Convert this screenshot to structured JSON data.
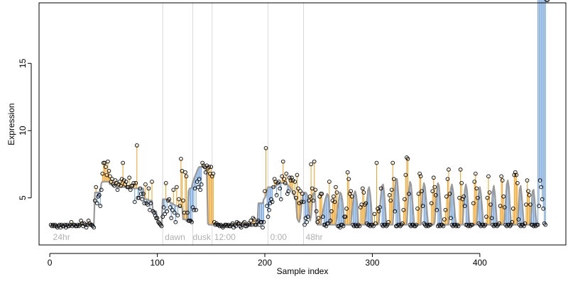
{
  "chart_data": {
    "type": "scatter",
    "xlabel": "Sample index",
    "ylabel": "Expression",
    "xlim": [
      -10,
      480
    ],
    "ylim": [
      1.5,
      19.5
    ],
    "xticks": [
      0,
      100,
      200,
      300,
      400
    ],
    "yticks": [
      5,
      10,
      15
    ],
    "grid": false,
    "colors": {
      "fit": "#9a9a9a",
      "above": "#f0a020",
      "below": "#6fa0d8",
      "points": "#000000",
      "vlines": "#d8d8d8",
      "annotations": "#b0b0b0"
    },
    "vlines": [
      105,
      133,
      151,
      203,
      236
    ],
    "annotations": [
      {
        "label": "24hr",
        "x": 3
      },
      {
        "label": "dawn",
        "x": 107
      },
      {
        "label": "dusk",
        "x": 133
      },
      {
        "label": "12:00",
        "x": 153
      },
      {
        "label": "0:00",
        "x": 205
      },
      {
        "label": "48hr",
        "x": 238
      }
    ],
    "x": [
      1,
      2,
      3,
      4,
      5,
      6,
      7,
      8,
      9,
      10,
      11,
      12,
      13,
      14,
      15,
      16,
      17,
      18,
      19,
      20,
      21,
      22,
      23,
      24,
      25,
      26,
      27,
      28,
      29,
      30,
      31,
      32,
      33,
      34,
      35,
      36,
      37,
      38,
      39,
      40,
      41,
      42,
      43,
      44,
      45,
      46,
      47,
      48,
      49,
      50,
      51,
      52,
      53,
      54,
      55,
      56,
      57,
      58,
      59,
      60,
      61,
      62,
      63,
      64,
      65,
      66,
      67,
      68,
      69,
      70,
      71,
      72,
      73,
      74,
      75,
      76,
      77,
      78,
      79,
      80,
      81,
      82,
      83,
      84,
      85,
      86,
      87,
      88,
      89,
      90,
      91,
      92,
      93,
      94,
      95,
      96,
      97,
      98,
      99,
      100,
      101,
      102,
      103,
      104,
      105,
      106,
      107,
      108,
      109,
      110,
      111,
      112,
      113,
      114,
      115,
      116,
      117,
      118,
      119,
      120,
      121,
      122,
      123,
      124,
      125,
      126,
      127,
      128,
      129,
      130,
      131,
      132,
      133,
      134,
      135,
      136,
      137,
      138,
      139,
      140,
      141,
      142,
      143,
      144,
      145,
      146,
      147,
      148,
      149,
      150,
      151,
      152,
      153,
      154,
      155,
      156,
      157,
      158,
      159,
      160,
      161,
      162,
      163,
      164,
      165,
      166,
      167,
      168,
      169,
      170,
      171,
      172,
      173,
      174,
      175,
      176,
      177,
      178,
      179,
      180,
      181,
      182,
      183,
      184,
      185,
      186,
      187,
      188,
      189,
      190,
      191,
      192,
      193,
      194,
      195,
      196,
      197,
      198,
      199,
      200,
      201,
      202,
      203,
      204,
      205,
      206,
      207,
      208,
      209,
      210,
      211,
      212,
      213,
      214,
      215,
      216,
      217,
      218,
      219,
      220,
      221,
      222,
      223,
      224,
      225,
      226,
      227,
      228,
      229,
      230,
      231,
      232,
      233,
      234,
      235,
      236,
      237,
      238,
      239,
      240,
      241,
      242,
      243,
      244,
      245,
      246,
      247,
      248,
      249,
      250,
      251,
      252,
      253,
      254,
      255,
      256,
      257,
      258,
      259,
      260,
      261,
      262,
      263,
      264,
      265,
      266,
      267,
      268,
      269,
      270,
      271,
      272,
      273,
      274,
      275,
      276,
      277,
      278,
      279,
      280,
      281,
      282,
      283,
      284,
      285,
      286,
      287,
      288,
      289,
      290,
      291,
      292,
      293,
      294,
      295,
      296,
      297,
      298,
      299,
      300,
      301,
      302,
      303,
      304,
      305,
      306,
      307,
      308,
      309,
      310,
      311,
      312,
      313,
      314,
      315,
      316,
      317,
      318,
      319,
      320,
      321,
      322,
      323,
      324,
      325,
      326,
      327,
      328,
      329,
      330,
      331,
      332,
      333,
      334,
      335,
      336,
      337,
      338,
      339,
      340,
      341,
      342,
      343,
      344,
      345,
      346,
      347,
      348,
      349,
      350,
      351,
      352,
      353,
      354,
      355,
      356,
      357,
      358,
      359,
      360,
      361,
      362,
      363,
      364,
      365,
      366,
      367,
      368,
      369,
      370,
      371,
      372,
      373,
      374,
      375,
      376,
      377,
      378,
      379,
      380,
      381,
      382,
      383,
      384,
      385,
      386,
      387,
      388,
      389,
      390,
      391,
      392,
      393,
      394,
      395,
      396,
      397,
      398,
      399,
      400,
      401,
      402,
      403,
      404,
      405,
      406,
      407,
      408,
      409,
      410,
      411,
      412,
      413,
      414,
      415,
      416,
      417,
      418,
      419,
      420,
      421,
      422,
      423,
      424,
      425,
      426,
      427,
      428,
      429,
      430,
      431,
      432,
      433,
      434,
      435,
      436,
      437,
      438,
      439,
      440,
      441,
      442,
      443,
      444,
      445,
      446,
      447,
      448,
      449,
      450,
      451,
      452,
      453,
      454,
      455,
      456,
      457,
      458,
      459,
      460,
      461,
      462,
      463
    ],
    "observed": [
      3.0,
      2.9,
      3.0,
      2.9,
      3.0,
      2.9,
      2.8,
      2.9,
      3.0,
      2.8,
      3.0,
      2.9,
      2.9,
      3.0,
      2.8,
      3.0,
      2.9,
      2.9,
      3.0,
      3.2,
      2.9,
      3.0,
      3.0,
      2.9,
      2.9,
      3.0,
      2.9,
      3.0,
      3.3,
      3.1,
      2.9,
      3.1,
      3.0,
      2.8,
      3.0,
      3.3,
      3.1,
      3.0,
      3.0,
      2.9,
      2.8,
      4.8,
      5.8,
      4.6,
      5.1,
      5.2,
      4.4,
      5.6,
      6.8,
      7.6,
      7.6,
      7.3,
      6.7,
      7.7,
      7.0,
      6.6,
      6.2,
      6.4,
      6.0,
      5.9,
      6.3,
      6.1,
      5.6,
      6.0,
      6.2,
      5.9,
      6.4,
      7.6,
      6.3,
      6.0,
      6.2,
      5.8,
      5.8,
      6.5,
      5.6,
      5.9,
      5.9,
      6.1,
      4.7,
      6.1,
      8.9,
      5.0,
      5.0,
      5.7,
      5.3,
      4.9,
      5.3,
      4.6,
      6.0,
      4.6,
      4.5,
      5.7,
      4.1,
      4.6,
      6.2,
      4.0,
      3.9,
      3.7,
      3.5,
      3.5,
      3.2,
      3.1,
      3.0,
      2.9,
      3.6,
      4.3,
      3.8,
      6.1,
      4.0,
      4.8,
      4.9,
      4.3,
      3.5,
      4.1,
      5.6,
      3.9,
      3.2,
      5.8,
      3.7,
      4.9,
      4.4,
      7.9,
      7.0,
      4.8,
      3.9,
      6.9,
      6.6,
      3.9,
      3.3,
      3.3,
      3.3,
      3.2,
      4.3,
      4.1,
      5.7,
      4.1,
      6.2,
      5.8,
      6.4,
      5.6,
      6.0,
      7.6,
      7.4,
      7.3,
      6.9,
      7.4,
      7.2,
      7.3,
      6.8,
      7.3,
      6.6,
      6.8,
      3.2,
      3.0,
      3.1,
      3.0,
      3.0,
      2.9,
      3.0,
      2.9,
      2.8,
      2.9,
      3.0,
      3.0,
      2.9,
      3.0,
      2.9,
      2.9,
      3.0,
      3.1,
      2.8,
      3.0,
      2.9,
      3.2,
      3.1,
      3.1,
      2.9,
      2.8,
      3.0,
      3.1,
      3.2,
      2.9,
      2.9,
      3.0,
      3.1,
      3.0,
      3.3,
      3.0,
      3.5,
      3.4,
      3.0,
      3.0,
      3.2,
      3.3,
      3.0,
      3.2,
      3.2,
      2.8,
      3.2,
      5.5,
      8.7,
      4.4,
      3.6,
      4.1,
      4.6,
      4.9,
      4.7,
      5.8,
      6.4,
      6.2,
      5.2,
      6.1,
      6.2,
      5.7,
      4.9,
      6.6,
      7.7,
      6.4,
      6.1,
      6.8,
      5.3,
      5.5,
      6.5,
      6.3,
      6.5,
      6.3,
      5.4,
      6.2,
      5.0,
      6.7,
      5.7,
      4.6,
      5.5,
      4.7,
      5.3,
      4.7,
      3.0,
      3.5,
      3.2,
      3.6,
      4.8,
      5.1,
      7.5,
      5.7,
      4.8,
      7.7,
      5.6,
      4.0,
      3.2,
      3.5,
      5.1,
      5.3,
      5.3,
      3.6,
      3.0,
      3.0,
      2.9,
      3.1,
      3.1,
      6.2,
      3.3,
      4.0,
      4.8,
      5.1,
      4.7,
      5.8,
      5.4,
      2.9,
      2.9,
      2.8,
      3.0,
      3.0,
      2.9,
      3.6,
      3.6,
      4.2,
      6.9,
      6.4,
      5.3,
      5.5,
      5.1,
      3.0,
      2.9,
      3.0,
      2.9,
      2.9,
      3.0,
      2.9,
      4.3,
      4.5,
      5.7,
      5.4,
      4.5,
      4.6,
      3.1,
      3.0,
      3.0,
      2.9,
      3.0,
      3.0,
      2.9,
      3.8,
      3.1,
      7.6,
      4.2,
      4.0,
      4.3,
      5.7,
      3.0,
      2.9,
      3.0,
      3.0,
      2.9,
      3.0,
      3.2,
      5.2,
      4.8,
      5.6,
      7.6,
      6.4,
      4.0,
      2.9,
      2.9,
      3.0,
      3.0,
      2.9,
      3.0,
      3.1,
      4.1,
      4.9,
      6.7,
      8.0,
      7.9,
      5.3,
      3.0,
      2.9,
      3.0,
      3.0,
      2.9,
      2.9,
      3.0,
      4.2,
      5.3,
      6.8,
      6.6,
      5.5,
      4.4,
      3.1,
      3.0,
      2.9,
      3.0,
      2.9,
      3.0,
      3.0,
      4.6,
      5.5,
      6.5,
      5.8,
      5.2,
      4.1,
      2.9,
      3.0,
      2.9,
      3.0,
      3.0,
      2.9,
      3.4,
      4.1,
      5.1,
      6.4,
      7.1,
      5.3,
      3.5,
      3.0,
      2.9,
      3.0,
      3.0,
      2.9,
      3.0,
      2.9,
      5.0,
      7.1,
      6.1,
      4.9,
      5.1,
      4.4,
      3.0,
      3.0,
      2.9,
      3.0,
      2.9,
      3.0,
      3.0,
      4.6,
      6.2,
      6.8,
      5.7,
      5.0,
      3.1,
      3.0,
      2.9,
      3.0,
      3.0,
      2.9,
      3.0,
      3.6,
      5.0,
      6.6,
      5.4,
      4.5,
      3.5,
      3.0,
      2.9,
      3.0,
      3.0,
      2.9,
      3.0,
      3.1,
      4.4,
      6.6,
      6.3,
      5.1,
      4.3,
      3.0,
      2.9,
      3.0,
      3.0,
      2.9,
      3.0,
      3.2,
      4.2,
      6.7,
      6.9,
      6.7,
      6.1,
      3.4,
      3.0,
      2.9,
      3.0,
      3.0,
      2.9,
      3.1,
      4.5,
      6.3,
      5.5,
      5.2,
      4.5,
      3.0,
      3.0,
      2.9,
      3.0,
      2.9,
      3.0,
      3.0,
      4.4,
      6.3,
      5.8,
      4.9,
      4.2,
      3.1,
      3.0
    ],
    "fitted": [
      3.0,
      3.0,
      3.0,
      3.0,
      3.0,
      3.0,
      3.0,
      3.0,
      3.0,
      3.0,
      3.0,
      3.0,
      3.0,
      3.0,
      3.0,
      3.0,
      3.0,
      3.0,
      3.0,
      3.0,
      3.0,
      3.0,
      3.0,
      3.0,
      3.0,
      3.0,
      3.0,
      3.0,
      3.0,
      3.0,
      3.0,
      3.0,
      3.0,
      3.0,
      3.0,
      3.0,
      3.0,
      3.0,
      3.0,
      3.0,
      3.0,
      5.4,
      5.4,
      5.4,
      5.4,
      5.4,
      5.6,
      6.1,
      6.2,
      6.2,
      6.2,
      6.2,
      6.2,
      6.2,
      6.2,
      6.0,
      6.0,
      6.0,
      6.0,
      6.0,
      6.0,
      5.8,
      5.8,
      5.8,
      5.8,
      5.8,
      5.8,
      5.8,
      5.8,
      5.8,
      5.8,
      5.8,
      5.7,
      5.7,
      5.7,
      5.7,
      5.7,
      5.7,
      5.7,
      5.7,
      5.7,
      5.7,
      5.7,
      5.7,
      5.7,
      5.7,
      5.7,
      4.9,
      4.9,
      4.9,
      4.9,
      4.8,
      4.8,
      4.8,
      4.8,
      4.0,
      4.0,
      4.0,
      4.0,
      3.3,
      3.2,
      3.0,
      3.0,
      3.0,
      4.9,
      4.9,
      4.9,
      4.9,
      4.9,
      4.8,
      4.7,
      4.7,
      4.6,
      4.6,
      4.5,
      4.5,
      4.4,
      4.4,
      4.4,
      4.4,
      4.3,
      4.3,
      4.3,
      3.4,
      3.4,
      3.4,
      3.3,
      3.3,
      5.5,
      5.7,
      5.7,
      5.8,
      6.2,
      6.4,
      6.6,
      6.8,
      7.0,
      7.2,
      7.3,
      7.3,
      7.3,
      7.3,
      7.3,
      7.2,
      7.1,
      6.9,
      3.1,
      3.0,
      3.0,
      3.0,
      3.0,
      3.0,
      3.0,
      3.0,
      3.0,
      3.0,
      3.0,
      3.0,
      3.0,
      3.0,
      3.0,
      3.0,
      3.0,
      3.0,
      3.0,
      3.0,
      3.0,
      3.0,
      3.0,
      3.0,
      3.0,
      3.0,
      3.0,
      3.0,
      3.0,
      3.0,
      3.0,
      3.0,
      3.0,
      3.0,
      3.0,
      3.0,
      3.0,
      3.0,
      3.0,
      3.0,
      3.0,
      3.0,
      3.0,
      3.0,
      3.0,
      3.0,
      3.0,
      4.6,
      4.6,
      4.6,
      4.6,
      4.6,
      4.9,
      5.0,
      5.2,
      5.6,
      5.8,
      5.8,
      5.8,
      5.8,
      5.8,
      5.8,
      5.8,
      5.9,
      6.0,
      6.1,
      6.1,
      6.1,
      6.1,
      6.1,
      6.1,
      6.1,
      6.1,
      6.0,
      6.0,
      5.9,
      5.8,
      5.7,
      5.6,
      5.4,
      5.2,
      5.0,
      4.8,
      3.5,
      3.3,
      3.2,
      3.5,
      4.4,
      5.0,
      5.3,
      5.4,
      5.4,
      5.3,
      5.0,
      4.0,
      3.3,
      3.6,
      4.6,
      5.3,
      5.4,
      4.9,
      3.2,
      3.0,
      3.0,
      3.0,
      3.0,
      3.6,
      4.0,
      4.4,
      4.8,
      5.1,
      5.3,
      5.2,
      4.6,
      3.0,
      3.0,
      3.0,
      3.0,
      3.0,
      3.0,
      3.6,
      4.4,
      5.0,
      5.4,
      5.3,
      4.9,
      4.2,
      3.0,
      3.0,
      3.0,
      3.0,
      3.0,
      3.0,
      3.0,
      4.0,
      4.6,
      5.3,
      5.5,
      5.2,
      4.5,
      3.0,
      3.0,
      3.0,
      3.0,
      3.0,
      3.0,
      3.0,
      3.8,
      4.8,
      5.6,
      5.8,
      5.3,
      4.4,
      3.0,
      3.0,
      3.0,
      3.0,
      3.0,
      3.0,
      3.1,
      4.2,
      5.2,
      5.9,
      6.0,
      5.4,
      4.3,
      3.0,
      3.0,
      3.0,
      3.0,
      3.0,
      3.0,
      3.0,
      4.4,
      5.6,
      6.4,
      6.4,
      5.5,
      4.3,
      3.0,
      3.0,
      3.0,
      3.0,
      3.0,
      3.0,
      3.0,
      4.4,
      5.6,
      6.2,
      6.0,
      5.1,
      4.0,
      3.0,
      3.0,
      3.0,
      3.0,
      3.0,
      3.0,
      3.0,
      4.5,
      5.6,
      6.1,
      5.8,
      4.9,
      3.8,
      3.0,
      3.0,
      3.0,
      3.0,
      3.0,
      3.0,
      3.2,
      4.4,
      5.5,
      6.1,
      5.9,
      4.9,
      3.6,
      3.0,
      3.0,
      3.0,
      3.0,
      3.0,
      3.0,
      3.0,
      4.4,
      5.7,
      6.0,
      5.6,
      4.7,
      3.6,
      3.0,
      3.0,
      3.0,
      3.0,
      3.0,
      3.0,
      3.0,
      4.5,
      5.6,
      6.0,
      5.6,
      4.6,
      3.3,
      3.0,
      3.0,
      3.0,
      3.0,
      3.0,
      3.0,
      3.0,
      4.3,
      5.4,
      5.8,
      5.3,
      4.4,
      3.2,
      3.0,
      3.0,
      3.0,
      3.0,
      3.0,
      3.0,
      3.0,
      4.3,
      5.5,
      5.9,
      5.3,
      4.2,
      3.0,
      3.0,
      3.0,
      3.0,
      3.0,
      3.0,
      3.0,
      3.4,
      4.8,
      6.0,
      6.3,
      5.8,
      4.4,
      3.1,
      3.0,
      3.0,
      3.0,
      3.0,
      3.0,
      3.0,
      4.2,
      5.6,
      5.9,
      5.1,
      4.0,
      3.0,
      3.0,
      3.0,
      3.0,
      3.0,
      3.0,
      3.0,
      4.2,
      5.5,
      5.6,
      4.8,
      3.7,
      3.0
    ]
  }
}
